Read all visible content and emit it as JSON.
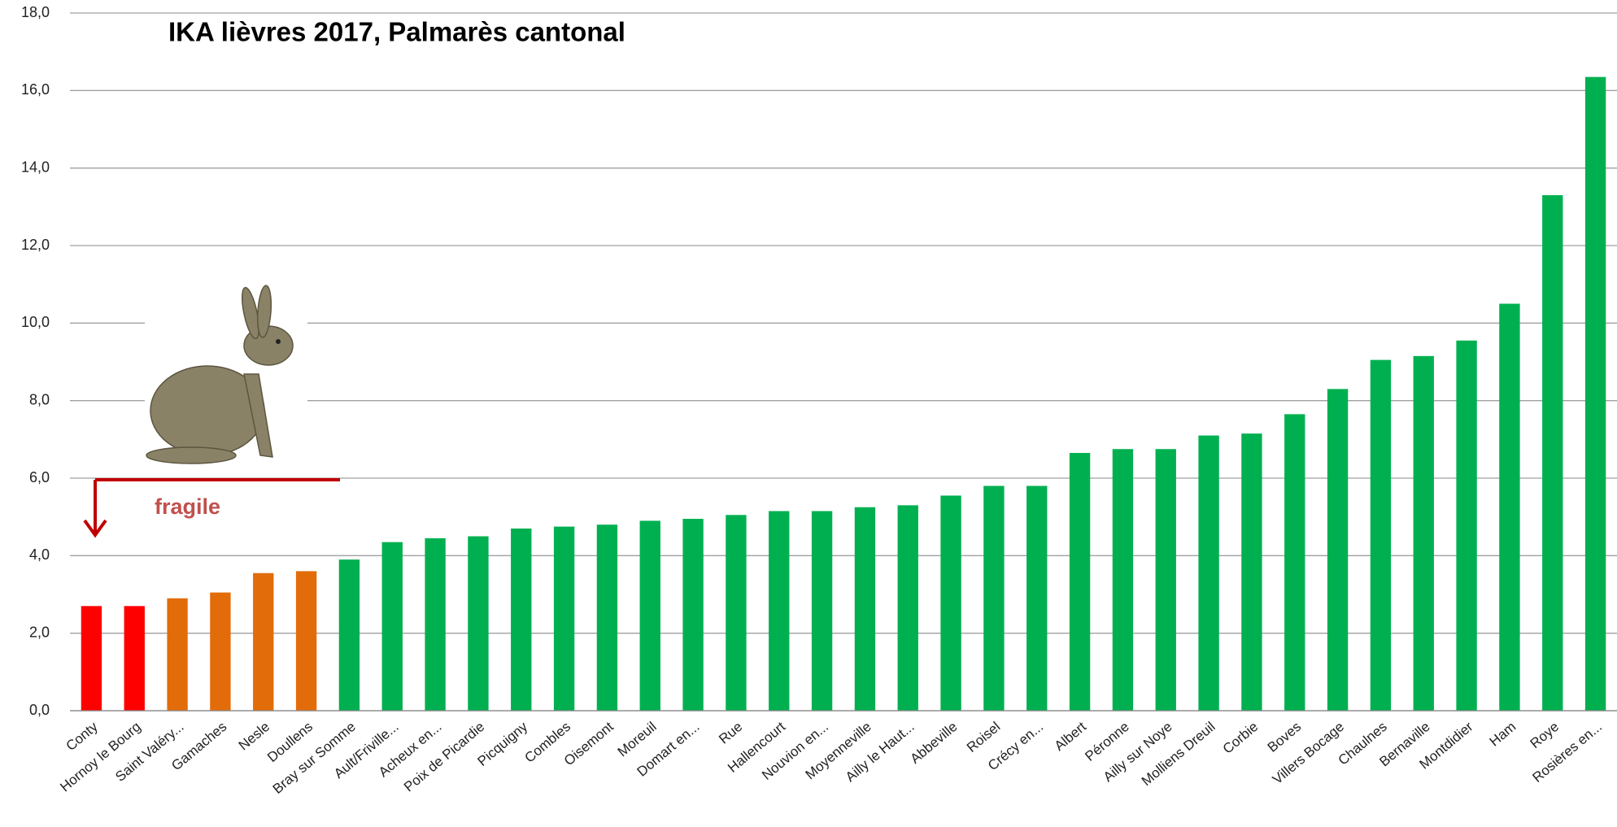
{
  "chart_data": {
    "type": "bar",
    "title": "IKA lièvres 2017, Palmarès cantonal",
    "categories": [
      "Conty",
      "Hornoy le Bourg",
      "Saint Valéry...",
      "Gamaches",
      "Nesle",
      "Doullens",
      "Bray sur Somme",
      "Ault/Friville...",
      "Acheux en...",
      "Poix de Picardie",
      "Picquigny",
      "Combles",
      "Oisemont",
      "Moreuil",
      "Domart en...",
      "Rue",
      "Hallencourt",
      "Nouvion en...",
      "Moyenneville",
      "Ailly le Haut...",
      "Abbeville",
      "Roisel",
      "Crécy en...",
      "Albert",
      "Péronne",
      "Ailly sur Noye",
      "Molliens Dreuil",
      "Corbie",
      "Boves",
      "Villers Bocage",
      "Chaulnes",
      "Bernaville",
      "Montdidier",
      "Ham",
      "Roye",
      "Rosières en..."
    ],
    "values": [
      2.7,
      2.7,
      2.9,
      3.05,
      3.55,
      3.6,
      3.9,
      4.35,
      4.45,
      4.5,
      4.7,
      4.75,
      4.8,
      4.9,
      4.95,
      5.05,
      5.15,
      5.15,
      5.25,
      5.3,
      5.55,
      5.8,
      5.8,
      6.65,
      6.75,
      6.75,
      7.1,
      7.15,
      7.65,
      8.3,
      9.05,
      9.15,
      9.55,
      10.5,
      13.3,
      16.35
    ],
    "colors": [
      "#ff0000",
      "#ff0000",
      "#e36c0a",
      "#e36c0a",
      "#e36c0a",
      "#e36c0a",
      "#00b050",
      "#00b050",
      "#00b050",
      "#00b050",
      "#00b050",
      "#00b050",
      "#00b050",
      "#00b050",
      "#00b050",
      "#00b050",
      "#00b050",
      "#00b050",
      "#00b050",
      "#00b050",
      "#00b050",
      "#00b050",
      "#00b050",
      "#00b050",
      "#00b050",
      "#00b050",
      "#00b050",
      "#00b050",
      "#00b050",
      "#00b050",
      "#00b050",
      "#00b050",
      "#00b050",
      "#00b050",
      "#00b050",
      "#00b050"
    ],
    "ylim": [
      0,
      18
    ],
    "yticks": [
      {
        "value": 0,
        "label": "0,0"
      },
      {
        "value": 2,
        "label": "2,0"
      },
      {
        "value": 4,
        "label": "4,0"
      },
      {
        "value": 6,
        "label": "6,0"
      },
      {
        "value": 8,
        "label": "8,0"
      },
      {
        "value": 10,
        "label": "10,0"
      },
      {
        "value": 12,
        "label": "12,0"
      },
      {
        "value": 14,
        "label": "14,0"
      },
      {
        "value": 16,
        "label": "16,0"
      },
      {
        "value": 18,
        "label": "18,0"
      }
    ],
    "grid": true,
    "annotation": "fragile"
  }
}
